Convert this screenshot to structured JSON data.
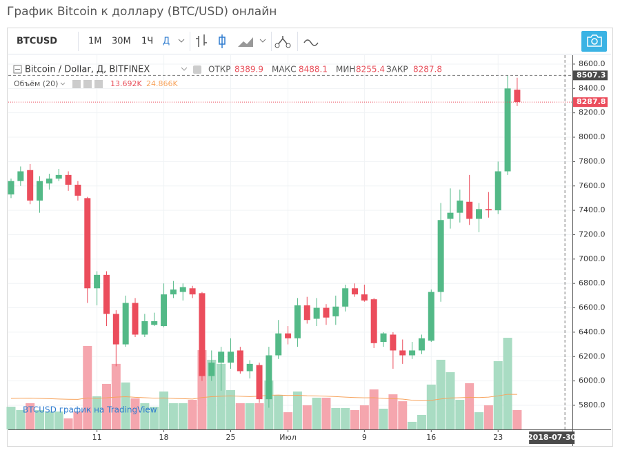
{
  "header": {
    "title": "График Bitcoin к доллару (BTC/USD) онлайн"
  },
  "toolbar": {
    "symbol": "BTCUSD",
    "intervals": [
      "1M",
      "30M",
      "1Ч",
      "Д"
    ]
  },
  "watermark": "BTCUSD график на TradingView",
  "chart_data": {
    "type": "candlestick",
    "name": "Bitcoin / Dollar, Д, BITFINEX",
    "legend_labels": {
      "open": "ОТКР",
      "high": "МАКС",
      "low": "МИН",
      "close": "ЗАКР"
    },
    "up_color": "#53b987",
    "down_color": "#eb4d5c",
    "x": [
      "2018-06-02",
      "2018-06-03",
      "2018-06-04",
      "2018-06-05",
      "2018-06-06",
      "2018-06-07",
      "2018-06-08",
      "2018-06-09",
      "2018-06-10",
      "2018-06-11",
      "2018-06-12",
      "2018-06-13",
      "2018-06-14",
      "2018-06-15",
      "2018-06-16",
      "2018-06-17",
      "2018-06-18",
      "2018-06-19",
      "2018-06-20",
      "2018-06-21",
      "2018-06-22",
      "2018-06-23",
      "2018-06-24",
      "2018-06-25",
      "2018-06-26",
      "2018-06-27",
      "2018-06-28",
      "2018-06-29",
      "2018-06-30",
      "2018-07-01",
      "2018-07-02",
      "2018-07-03",
      "2018-07-04",
      "2018-07-05",
      "2018-07-06",
      "2018-07-07",
      "2018-07-08",
      "2018-07-09",
      "2018-07-10",
      "2018-07-11",
      "2018-07-12",
      "2018-07-13",
      "2018-07-14",
      "2018-07-15",
      "2018-07-16",
      "2018-07-17",
      "2018-07-18",
      "2018-07-19",
      "2018-07-20",
      "2018-07-21",
      "2018-07-22",
      "2018-07-23",
      "2018-07-24",
      "2018-07-25"
    ],
    "open": [
      7530,
      7640,
      7730,
      7480,
      7620,
      7660,
      7690,
      7610,
      7500,
      6760,
      6870,
      6550,
      6300,
      6640,
      6380,
      6460,
      6450,
      6710,
      6730,
      6760,
      6720,
      6040,
      6150,
      6150,
      6250,
      6080,
      6130,
      5850,
      6210,
      6390,
      6350,
      6620,
      6510,
      6600,
      6530,
      6610,
      6760,
      6710,
      6670,
      6320,
      6380,
      6250,
      6210,
      6250,
      6330,
      6730,
      7330,
      7380,
      7470,
      7330,
      7410,
      7400,
      7720,
      8389.9
    ],
    "high": [
      7660,
      7760,
      7780,
      7680,
      7700,
      7740,
      7720,
      7640,
      7510,
      6900,
      6900,
      6580,
      6700,
      6680,
      6550,
      6560,
      6800,
      6820,
      6800,
      6780,
      6730,
      6250,
      6280,
      6350,
      6280,
      6170,
      6150,
      6280,
      6500,
      6450,
      6680,
      6690,
      6680,
      6630,
      6700,
      6790,
      6800,
      6790,
      6680,
      6400,
      6400,
      6340,
      6320,
      6380,
      6750,
      7460,
      7580,
      7570,
      7690,
      7460,
      7550,
      7800,
      8507.3,
      8488.1
    ],
    "low": [
      7500,
      7600,
      7450,
      7380,
      7570,
      7640,
      7560,
      7480,
      6640,
      6620,
      6450,
      6120,
      6280,
      6360,
      6360,
      6450,
      6440,
      6680,
      6660,
      6680,
      6000,
      6000,
      5920,
      6100,
      6060,
      6020,
      5820,
      5780,
      6180,
      6300,
      6280,
      6470,
      6450,
      6460,
      6460,
      6570,
      6690,
      6650,
      6270,
      6280,
      6100,
      6140,
      6180,
      6220,
      6320,
      6650,
      7250,
      7300,
      7280,
      7220,
      7340,
      7370,
      7690,
      8255.4
    ],
    "close": [
      7640,
      7720,
      7480,
      7640,
      7660,
      7690,
      7610,
      7520,
      6760,
      6870,
      6550,
      6300,
      6640,
      6380,
      6490,
      6490,
      6710,
      6750,
      6770,
      6710,
      6040,
      6150,
      6240,
      6240,
      6080,
      6140,
      5850,
      6210,
      6390,
      6350,
      6620,
      6500,
      6600,
      6520,
      6610,
      6760,
      6710,
      6660,
      6310,
      6390,
      6250,
      6210,
      6250,
      6350,
      6730,
      7320,
      7380,
      7480,
      7330,
      7410,
      7400,
      7720,
      8400,
      8287.8
    ],
    "volume": {
      "name": "Объём (20)",
      "up_color": "#a9dcc3",
      "down_color": "#f5a6ae",
      "ma_color": "#f7a35c",
      "values": [
        16100,
        13700,
        18600,
        13700,
        12700,
        12700,
        7800,
        12700,
        59200,
        23500,
        32300,
        46500,
        33300,
        22000,
        18600,
        16100,
        26900,
        18600,
        18600,
        21000,
        56200,
        49400,
        46500,
        27900,
        18600,
        18600,
        18600,
        34700,
        24400,
        12200,
        26900,
        17100,
        22500,
        22500,
        15200,
        15200,
        13700,
        17100,
        28400,
        14700,
        24900,
        20000,
        5400,
        10300,
        31800,
        49400,
        40600,
        21000,
        32800,
        12200,
        17100,
        48400,
        65000,
        13692
      ],
      "ma": [
        22000,
        22100,
        22200,
        22000,
        21800,
        21600,
        21400,
        21300,
        22300,
        22100,
        22400,
        22900,
        23200,
        22800,
        22500,
        22200,
        22300,
        22000,
        21800,
        21600,
        22600,
        23200,
        23600,
        23800,
        23500,
        23300,
        23600,
        24200,
        24400,
        24100,
        24200,
        23900,
        23800,
        23600,
        23300,
        22900,
        22600,
        22400,
        22500,
        22000,
        21800,
        21500,
        20700,
        20300,
        20600,
        21600,
        22300,
        22500,
        22800,
        22600,
        22900,
        23800,
        24900,
        24866
      ],
      "value_label": "13.692K",
      "ma_label": "24.866K",
      "ylim": [
        0,
        263000
      ]
    },
    "ylim": [
      5602,
      8645
    ],
    "yticks": [
      {
        "value": 5800,
        "label": "5800.0"
      },
      {
        "value": 6000,
        "label": "6000.0"
      },
      {
        "value": 6200,
        "label": "6200.0"
      },
      {
        "value": 6400,
        "label": "6400.0"
      },
      {
        "value": 6600,
        "label": "6600.0"
      },
      {
        "value": 6800,
        "label": "6800.0"
      },
      {
        "value": 7000,
        "label": "7000.0"
      },
      {
        "value": 7200,
        "label": "7200.0"
      },
      {
        "value": 7400,
        "label": "7400.0"
      },
      {
        "value": 7600,
        "label": "7600.0"
      },
      {
        "value": 7800,
        "label": "7800.0"
      },
      {
        "value": 8000,
        "label": "8000.0"
      },
      {
        "value": 8200,
        "label": "8200.0"
      },
      {
        "value": 8400,
        "label": "8400.0"
      },
      {
        "value": 8600,
        "label": "8600.0"
      }
    ],
    "xlim": [
      "2018-06-02",
      "2018-07-31"
    ],
    "xticks": [
      {
        "value": "2018-06-11",
        "label": "11"
      },
      {
        "value": "2018-06-18",
        "label": "18"
      },
      {
        "value": "2018-06-25",
        "label": "25"
      },
      {
        "value": "2018-07-01",
        "label": "Июл"
      },
      {
        "value": "2018-07-09",
        "label": "9"
      },
      {
        "value": "2018-07-16",
        "label": "16"
      },
      {
        "value": "2018-07-23",
        "label": "23"
      }
    ],
    "crosshair_x": "2018-07-30",
    "grid": true
  }
}
